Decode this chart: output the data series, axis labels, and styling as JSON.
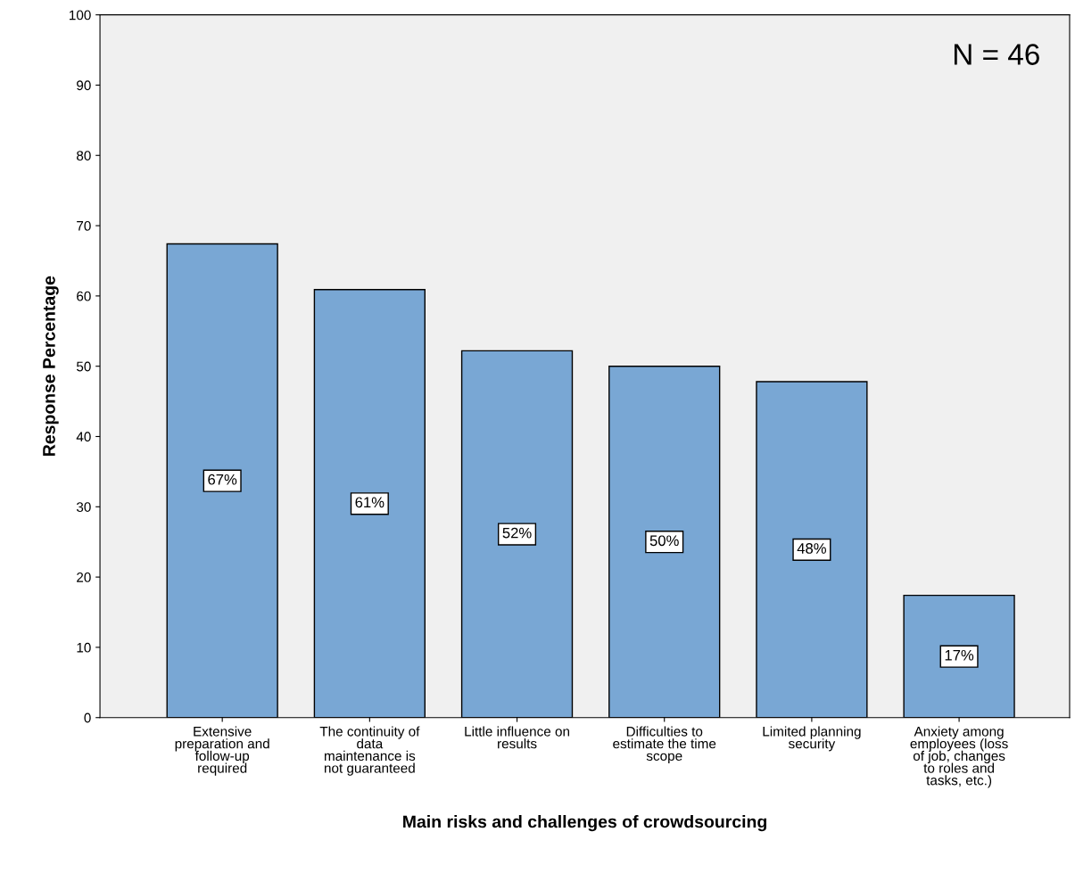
{
  "chart_data": {
    "type": "bar",
    "xlabel": "Main risks and challenges of crowdsourcing",
    "ylabel": "Response Percentage",
    "categories": [
      "Extensive\npreparation and\nfollow-up\nrequired",
      "The continuity of\ndata\nmaintenance is\nnot guaranteed",
      "Little influence on\nresults",
      "Difficulties to\nestimate the time\nscope",
      "Limited planning\nsecurity",
      "Anxiety among\nemployees (loss\nof job, changes\nto roles and\ntasks, etc.)"
    ],
    "values": [
      67.4,
      60.9,
      52.2,
      50.0,
      47.8,
      17.4
    ],
    "value_labels": [
      "67%",
      "61%",
      "52%",
      "50%",
      "48%",
      "17%"
    ],
    "color": "#79a7d4",
    "ylim": [
      0,
      100
    ],
    "yticks": [
      0,
      10,
      20,
      30,
      40,
      50,
      60,
      70,
      80,
      90,
      100
    ],
    "annotations": [
      "N = 46"
    ],
    "grid": false,
    "legend": false
  }
}
